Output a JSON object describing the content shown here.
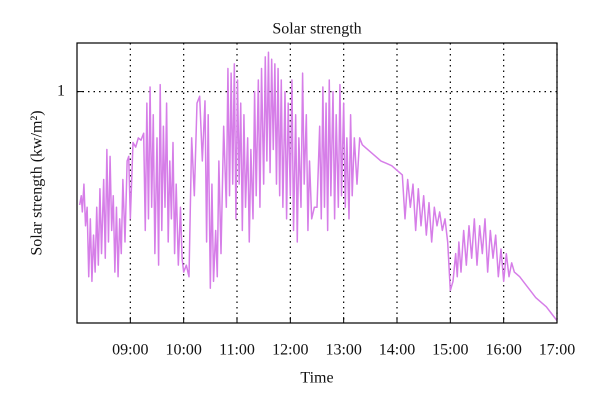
{
  "chart_data": {
    "type": "line",
    "title": "Solar strength",
    "xlabel": "Time",
    "ylabel": "Solar strength (kw/m²)",
    "color": "#d67ee8",
    "xlim": [
      8,
      17
    ],
    "ylim": [
      0,
      1.21
    ],
    "xticks": [
      {
        "value": 9,
        "label": "09:00"
      },
      {
        "value": 10,
        "label": "10:00"
      },
      {
        "value": 11,
        "label": "11:00"
      },
      {
        "value": 12,
        "label": "12:00"
      },
      {
        "value": 13,
        "label": "13:00"
      },
      {
        "value": 14,
        "label": "14:00"
      },
      {
        "value": 15,
        "label": "15:00"
      },
      {
        "value": 16,
        "label": "16:00"
      },
      {
        "value": 17,
        "label": "17:00"
      }
    ],
    "yticks": [
      1
    ],
    "grid": true,
    "x": [
      8.05,
      8.08,
      8.1,
      8.13,
      8.16,
      8.19,
      8.22,
      8.25,
      8.28,
      8.31,
      8.34,
      8.37,
      8.4,
      8.43,
      8.46,
      8.5,
      8.53,
      8.56,
      8.59,
      8.62,
      8.65,
      8.68,
      8.71,
      8.74,
      8.77,
      8.8,
      8.83,
      8.86,
      8.9,
      8.94,
      8.97,
      9.0,
      9.05,
      9.1,
      9.15,
      9.2,
      9.25,
      9.28,
      9.31,
      9.34,
      9.37,
      9.4,
      9.43,
      9.46,
      9.5,
      9.53,
      9.56,
      9.59,
      9.62,
      9.65,
      9.68,
      9.71,
      9.74,
      9.77,
      9.8,
      9.83,
      9.86,
      9.9,
      9.94,
      9.97,
      10.0,
      10.05,
      10.1,
      10.15,
      10.2,
      10.25,
      10.3,
      10.35,
      10.4,
      10.43,
      10.46,
      10.5,
      10.53,
      10.56,
      10.6,
      10.63,
      10.66,
      10.7,
      10.75,
      10.8,
      10.83,
      10.86,
      10.89,
      10.92,
      10.95,
      10.98,
      11.01,
      11.04,
      11.07,
      11.1,
      11.13,
      11.16,
      11.2,
      11.23,
      11.26,
      11.3,
      11.33,
      11.36,
      11.4,
      11.43,
      11.46,
      11.5,
      11.53,
      11.56,
      11.59,
      11.62,
      11.65,
      11.68,
      11.71,
      11.74,
      11.77,
      11.8,
      11.83,
      11.86,
      11.9,
      11.93,
      11.96,
      12.0,
      12.03,
      12.06,
      12.1,
      12.13,
      12.16,
      12.2,
      12.23,
      12.26,
      12.3,
      12.33,
      12.36,
      12.4,
      12.45,
      12.5,
      12.55,
      12.58,
      12.61,
      12.64,
      12.67,
      12.7,
      12.73,
      12.76,
      12.8,
      12.83,
      12.86,
      12.9,
      12.93,
      12.96,
      13.0,
      13.03,
      13.06,
      13.1,
      13.13,
      13.16,
      13.2,
      13.25,
      13.3,
      13.35,
      13.4,
      13.5,
      13.6,
      13.7,
      13.8,
      13.9,
      14.0,
      14.1,
      14.15,
      14.2,
      14.25,
      14.3,
      14.35,
      14.4,
      14.45,
      14.5,
      14.55,
      14.6,
      14.65,
      14.7,
      14.75,
      14.8,
      14.85,
      14.9,
      14.95,
      15.0,
      15.05,
      15.1,
      15.13,
      15.16,
      15.2,
      15.25,
      15.3,
      15.35,
      15.4,
      15.45,
      15.5,
      15.55,
      15.6,
      15.65,
      15.7,
      15.75,
      15.8,
      15.85,
      15.9,
      15.95,
      16.0,
      16.05,
      16.1,
      16.15,
      16.2,
      16.3,
      16.4,
      16.5,
      16.6,
      16.7,
      16.8,
      16.9,
      17.0
    ],
    "values": [
      0.51,
      0.55,
      0.48,
      0.6,
      0.42,
      0.5,
      0.2,
      0.45,
      0.18,
      0.38,
      0.22,
      0.5,
      0.25,
      0.58,
      0.3,
      0.62,
      0.28,
      0.75,
      0.35,
      0.72,
      0.4,
      0.55,
      0.22,
      0.5,
      0.2,
      0.45,
      0.3,
      0.62,
      0.35,
      0.7,
      0.72,
      0.45,
      0.78,
      0.76,
      0.8,
      0.79,
      0.82,
      0.4,
      0.95,
      0.45,
      1.02,
      0.5,
      0.9,
      0.3,
      0.8,
      0.25,
      1.03,
      0.4,
      0.85,
      0.5,
      0.95,
      0.35,
      0.7,
      0.45,
      0.78,
      0.3,
      0.6,
      0.25,
      0.5,
      0.28,
      0.22,
      0.25,
      0.2,
      0.8,
      0.55,
      0.95,
      0.98,
      0.7,
      0.96,
      0.35,
      0.9,
      0.15,
      0.6,
      0.18,
      0.4,
      0.2,
      0.7,
      0.3,
      0.85,
      0.5,
      1.1,
      0.55,
      1.08,
      0.6,
      1.12,
      0.45,
      1.05,
      0.6,
      0.95,
      0.4,
      0.9,
      0.5,
      0.8,
      0.35,
      0.75,
      0.45,
      1.0,
      0.55,
      1.05,
      0.5,
      1.1,
      0.6,
      1.15,
      0.7,
      1.17,
      0.65,
      1.14,
      0.75,
      1.12,
      0.6,
      1.1,
      0.55,
      1.05,
      0.5,
      1.0,
      0.45,
      0.95,
      0.55,
      1.05,
      0.4,
      0.9,
      0.35,
      0.8,
      0.5,
      1.08,
      0.6,
      0.9,
      0.4,
      0.7,
      0.45,
      0.5,
      0.5,
      0.85,
      0.45,
      1.02,
      0.5,
      0.95,
      0.4,
      1.05,
      0.55,
      1.0,
      0.45,
      0.9,
      0.5,
      1.03,
      0.55,
      0.95,
      0.5,
      0.8,
      0.45,
      0.9,
      0.55,
      0.8,
      0.6,
      0.8,
      0.77,
      0.76,
      0.74,
      0.72,
      0.7,
      0.69,
      0.68,
      0.66,
      0.64,
      0.45,
      0.62,
      0.5,
      0.6,
      0.4,
      0.58,
      0.42,
      0.55,
      0.38,
      0.52,
      0.35,
      0.5,
      0.42,
      0.48,
      0.4,
      0.45,
      0.35,
      0.14,
      0.18,
      0.3,
      0.2,
      0.35,
      0.22,
      0.4,
      0.25,
      0.42,
      0.28,
      0.45,
      0.25,
      0.42,
      0.3,
      0.45,
      0.22,
      0.4,
      0.28,
      0.38,
      0.2,
      0.32,
      0.18,
      0.3,
      0.2,
      0.26,
      0.22,
      0.2,
      0.17,
      0.14,
      0.11,
      0.09,
      0.07,
      0.04,
      0.01
    ]
  }
}
